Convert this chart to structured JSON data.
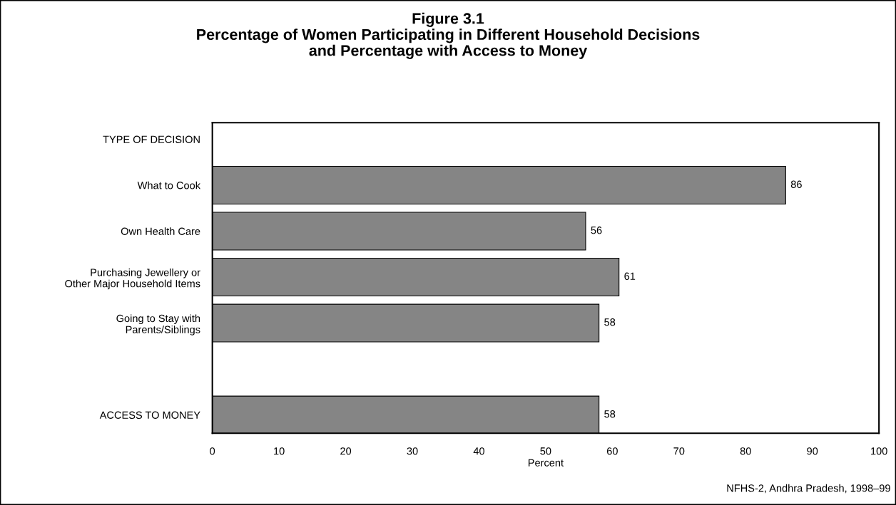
{
  "chart_data": {
    "type": "bar",
    "orientation": "horizontal",
    "title": "Figure 3.1\nPercentage of Women Participating in Different Household Decisions\nand Percentage with Access to Money",
    "categories": [
      "TYPE OF DECISION",
      "What to Cook",
      "Own Health Care",
      "Purchasing Jewellery or\nOther Major Household Items",
      "Going to Stay with\nParents/Siblings",
      null,
      "ACCESS TO MONEY"
    ],
    "values": [
      null,
      86,
      56,
      61,
      58,
      null,
      58
    ],
    "color": "#858585",
    "xlim": [
      0,
      100
    ],
    "xticks": [
      0,
      10,
      20,
      30,
      40,
      50,
      60,
      70,
      80,
      90,
      100
    ],
    "xlabel": "Percent",
    "data_labels": true,
    "annotations": [
      "NFHS-2, Andhra Pradesh, 1998–99"
    ]
  }
}
